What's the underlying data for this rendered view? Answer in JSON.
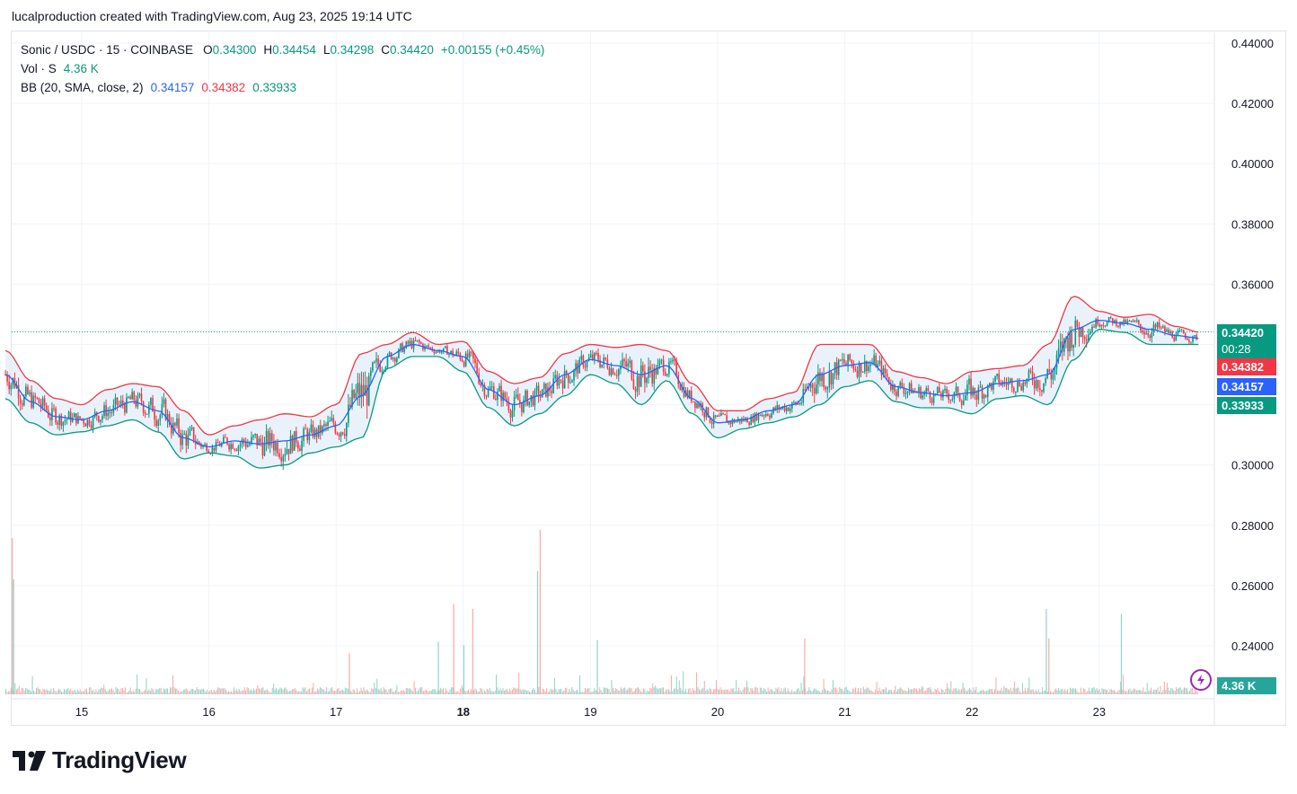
{
  "header": {
    "text": "lucalproduction created with TradingView.com, Aug 23, 2025 19:14 UTC"
  },
  "legend": {
    "symbol": "Sonic / USDC · 15 · COINBASE",
    "open_label": "O",
    "open": "0.34300",
    "high_label": "H",
    "high": "0.34454",
    "low_label": "L",
    "low": "0.34298",
    "close_label": "C",
    "close": "0.34420",
    "change": "+0.00155 (+0.45%)",
    "vol_label": "Vol · S",
    "vol": "4.36 K",
    "bb_label": "BB (20, SMA, close, 2)",
    "bb_basis": "0.34157",
    "bb_upper": "0.34382",
    "bb_lower": "0.33933"
  },
  "price_tags": {
    "last": "0.34420",
    "countdown": "00:28",
    "upper": "0.34382",
    "basis": "0.34157",
    "lower": "0.33933",
    "volume": "4.36 K"
  },
  "colors": {
    "up": "#089981",
    "down": "#f23645",
    "basis": "#2962ff",
    "upper": "#f23645",
    "lower": "#089981",
    "band_fill": "#e3eff9"
  },
  "logo": {
    "text": "TradingView",
    "icon": "tradingview-logo-icon"
  },
  "chart_data": {
    "type": "candlestick",
    "y_ticks": [
      "0.44000",
      "0.42000",
      "0.40000",
      "0.38000",
      "0.36000",
      "0.34000",
      "0.32000",
      "0.30000",
      "0.28000",
      "0.26000",
      "0.24000"
    ],
    "ylim": [
      0.2344,
      0.4464
    ],
    "x_ticks": [
      "15",
      "16",
      "17",
      "18",
      "19",
      "20",
      "21",
      "22",
      "23"
    ],
    "x_tick_bold": "18",
    "bollinger_basis": [
      [
        14.4,
        0.33
      ],
      [
        14.6,
        0.321
      ],
      [
        14.8,
        0.316
      ],
      [
        15.0,
        0.315
      ],
      [
        15.2,
        0.318
      ],
      [
        15.4,
        0.321
      ],
      [
        15.6,
        0.318
      ],
      [
        15.8,
        0.309
      ],
      [
        16.0,
        0.306
      ],
      [
        16.2,
        0.308
      ],
      [
        16.4,
        0.307
      ],
      [
        16.6,
        0.308
      ],
      [
        16.8,
        0.31
      ],
      [
        17.0,
        0.313
      ],
      [
        17.2,
        0.323
      ],
      [
        17.4,
        0.336
      ],
      [
        17.6,
        0.34
      ],
      [
        17.8,
        0.338
      ],
      [
        18.0,
        0.336
      ],
      [
        18.2,
        0.325
      ],
      [
        18.4,
        0.32
      ],
      [
        18.6,
        0.323
      ],
      [
        18.8,
        0.33
      ],
      [
        19.0,
        0.335
      ],
      [
        19.2,
        0.333
      ],
      [
        19.4,
        0.33
      ],
      [
        19.6,
        0.333
      ],
      [
        19.8,
        0.322
      ],
      [
        20.0,
        0.314
      ],
      [
        20.2,
        0.315
      ],
      [
        20.4,
        0.318
      ],
      [
        20.6,
        0.32
      ],
      [
        20.8,
        0.33
      ],
      [
        21.0,
        0.333
      ],
      [
        21.2,
        0.334
      ],
      [
        21.4,
        0.326
      ],
      [
        21.6,
        0.324
      ],
      [
        21.8,
        0.323
      ],
      [
        22.0,
        0.324
      ],
      [
        22.2,
        0.327
      ],
      [
        22.4,
        0.328
      ],
      [
        22.6,
        0.33
      ],
      [
        22.8,
        0.345
      ],
      [
        23.0,
        0.348
      ],
      [
        23.2,
        0.347
      ],
      [
        23.4,
        0.345
      ],
      [
        23.6,
        0.343
      ],
      [
        23.8,
        0.342
      ]
    ],
    "bollinger_upper": [
      [
        14.4,
        0.338
      ],
      [
        14.6,
        0.328
      ],
      [
        14.8,
        0.322
      ],
      [
        15.0,
        0.32
      ],
      [
        15.2,
        0.325
      ],
      [
        15.4,
        0.327
      ],
      [
        15.6,
        0.326
      ],
      [
        15.8,
        0.318
      ],
      [
        16.0,
        0.31
      ],
      [
        16.2,
        0.313
      ],
      [
        16.4,
        0.315
      ],
      [
        16.6,
        0.317
      ],
      [
        16.8,
        0.316
      ],
      [
        17.0,
        0.32
      ],
      [
        17.2,
        0.337
      ],
      [
        17.4,
        0.34
      ],
      [
        17.6,
        0.344
      ],
      [
        17.8,
        0.34
      ],
      [
        18.0,
        0.341
      ],
      [
        18.2,
        0.331
      ],
      [
        18.4,
        0.327
      ],
      [
        18.6,
        0.329
      ],
      [
        18.8,
        0.337
      ],
      [
        19.0,
        0.34
      ],
      [
        19.2,
        0.339
      ],
      [
        19.4,
        0.34
      ],
      [
        19.6,
        0.338
      ],
      [
        19.8,
        0.327
      ],
      [
        20.0,
        0.318
      ],
      [
        20.2,
        0.318
      ],
      [
        20.4,
        0.322
      ],
      [
        20.6,
        0.324
      ],
      [
        20.8,
        0.34
      ],
      [
        21.0,
        0.34
      ],
      [
        21.2,
        0.34
      ],
      [
        21.4,
        0.331
      ],
      [
        21.6,
        0.329
      ],
      [
        21.8,
        0.327
      ],
      [
        22.0,
        0.331
      ],
      [
        22.2,
        0.332
      ],
      [
        22.4,
        0.333
      ],
      [
        22.6,
        0.34
      ],
      [
        22.8,
        0.356
      ],
      [
        23.0,
        0.351
      ],
      [
        23.2,
        0.349
      ],
      [
        23.4,
        0.35
      ],
      [
        23.6,
        0.346
      ],
      [
        23.8,
        0.344
      ]
    ],
    "bollinger_lower": [
      [
        14.4,
        0.322
      ],
      [
        14.6,
        0.314
      ],
      [
        14.8,
        0.31
      ],
      [
        15.0,
        0.311
      ],
      [
        15.2,
        0.313
      ],
      [
        15.4,
        0.315
      ],
      [
        15.6,
        0.311
      ],
      [
        15.8,
        0.302
      ],
      [
        16.0,
        0.304
      ],
      [
        16.2,
        0.303
      ],
      [
        16.4,
        0.299
      ],
      [
        16.6,
        0.3
      ],
      [
        16.8,
        0.304
      ],
      [
        17.0,
        0.306
      ],
      [
        17.2,
        0.309
      ],
      [
        17.4,
        0.332
      ],
      [
        17.6,
        0.336
      ],
      [
        17.8,
        0.336
      ],
      [
        18.0,
        0.331
      ],
      [
        18.2,
        0.319
      ],
      [
        18.4,
        0.313
      ],
      [
        18.6,
        0.317
      ],
      [
        18.8,
        0.323
      ],
      [
        19.0,
        0.33
      ],
      [
        19.2,
        0.327
      ],
      [
        19.4,
        0.32
      ],
      [
        19.6,
        0.328
      ],
      [
        19.8,
        0.317
      ],
      [
        20.0,
        0.309
      ],
      [
        20.2,
        0.312
      ],
      [
        20.4,
        0.314
      ],
      [
        20.6,
        0.316
      ],
      [
        20.8,
        0.32
      ],
      [
        21.0,
        0.326
      ],
      [
        21.2,
        0.328
      ],
      [
        21.4,
        0.321
      ],
      [
        21.6,
        0.319
      ],
      [
        21.8,
        0.319
      ],
      [
        22.0,
        0.317
      ],
      [
        22.2,
        0.322
      ],
      [
        22.4,
        0.323
      ],
      [
        22.6,
        0.32
      ],
      [
        22.8,
        0.335
      ],
      [
        23.0,
        0.345
      ],
      [
        23.2,
        0.344
      ],
      [
        23.4,
        0.34
      ],
      [
        23.6,
        0.34
      ],
      [
        23.8,
        0.34
      ]
    ],
    "last_price": 0.3442,
    "volume_spikes": [
      [
        14.45,
        0.95
      ],
      [
        14.46,
        0.7
      ],
      [
        17.1,
        0.25
      ],
      [
        17.8,
        0.32
      ],
      [
        17.92,
        0.55
      ],
      [
        18.0,
        0.3
      ],
      [
        18.07,
        0.52
      ],
      [
        18.58,
        0.75
      ],
      [
        18.6,
        1.0
      ],
      [
        19.05,
        0.33
      ],
      [
        20.68,
        0.34
      ],
      [
        22.58,
        0.52
      ],
      [
        22.6,
        0.34
      ],
      [
        23.17,
        0.49
      ]
    ]
  }
}
